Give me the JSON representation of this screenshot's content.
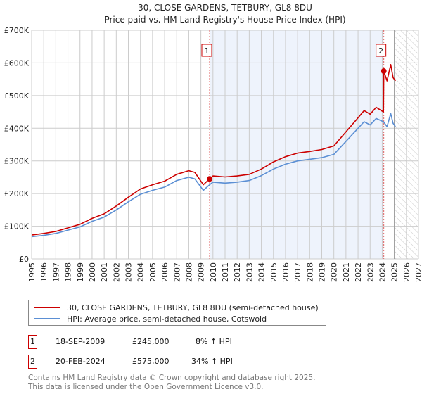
{
  "title_line1": "30, CLOSE GARDENS, TETBURY, GL8 8DU",
  "title_line2": "Price paid vs. HM Land Registry's House Price Index (HPI)",
  "colors": {
    "property": "#cc0000",
    "hpi": "#5b8fd4",
    "shade": "#eef3fc",
    "grid": "#cccccc"
  },
  "chart_data": {
    "type": "line",
    "title": "30, CLOSE GARDENS, TETBURY, GL8 8DU - Price paid vs. HM Land Registry's House Price Index (HPI)",
    "xlim": [
      1995,
      2027
    ],
    "ylim": [
      0,
      700000
    ],
    "x_ticks": [
      "1995",
      "1996",
      "1997",
      "1998",
      "1999",
      "2000",
      "2001",
      "2002",
      "2003",
      "2004",
      "2005",
      "2006",
      "2007",
      "2008",
      "2009",
      "2010",
      "2011",
      "2012",
      "2013",
      "2014",
      "2015",
      "2016",
      "2017",
      "2018",
      "2019",
      "2020",
      "2021",
      "2022",
      "2023",
      "2024",
      "2025",
      "2026",
      "2027"
    ],
    "y_ticks": [
      {
        "v": 0,
        "label": "£0"
      },
      {
        "v": 100000,
        "label": "£100K"
      },
      {
        "v": 200000,
        "label": "£200K"
      },
      {
        "v": 300000,
        "label": "£300K"
      },
      {
        "v": 400000,
        "label": "£400K"
      },
      {
        "v": 500000,
        "label": "£500K"
      },
      {
        "v": 600000,
        "label": "£600K"
      },
      {
        "v": 700000,
        "label": "£700K"
      }
    ],
    "grid": true,
    "series": [
      {
        "name": "30, CLOSE GARDENS, TETBURY, GL8 8DU (semi-detached house)",
        "color": "#cc0000",
        "x": [
          1995,
          1996,
          1997,
          1998,
          1999,
          2000,
          2001,
          2002,
          2003,
          2004,
          2005,
          2006,
          2007,
          2008,
          2008.5,
          2009.2,
          2009.72,
          2010,
          2011,
          2012,
          2013,
          2014,
          2015,
          2016,
          2017,
          2018,
          2019,
          2020,
          2021,
          2022,
          2022.5,
          2023,
          2023.5,
          2024.1,
          2024.13,
          2024.4,
          2024.7,
          2024.9,
          2025.1
        ],
        "y": [
          73000,
          78000,
          84000,
          95000,
          106000,
          124000,
          138000,
          162000,
          189000,
          214000,
          227000,
          238000,
          259000,
          270000,
          265000,
          227000,
          245000,
          254000,
          251000,
          254000,
          259000,
          275000,
          297000,
          313000,
          324000,
          329000,
          335000,
          346000,
          389000,
          432000,
          454000,
          443000,
          464000,
          450000,
          575000,
          545000,
          595000,
          555000,
          545000
        ]
      },
      {
        "name": "HPI: Average price, semi-detached house, Cotswold",
        "color": "#5b8fd4",
        "x": [
          1995,
          1996,
          1997,
          1998,
          1999,
          2000,
          2001,
          2002,
          2003,
          2004,
          2005,
          2006,
          2007,
          2008,
          2008.5,
          2009.2,
          2009.72,
          2010,
          2011,
          2012,
          2013,
          2014,
          2015,
          2016,
          2017,
          2018,
          2019,
          2020,
          2021,
          2022,
          2022.5,
          2023,
          2023.5,
          2024.1,
          2024.4,
          2024.7,
          2024.9,
          2025.1
        ],
        "y": [
          68000,
          72000,
          78000,
          88000,
          98000,
          115000,
          128000,
          150000,
          175000,
          198000,
          210000,
          220000,
          240000,
          250000,
          245000,
          210000,
          227000,
          235000,
          232000,
          235000,
          240000,
          255000,
          275000,
          290000,
          300000,
          305000,
          310000,
          320000,
          360000,
          400000,
          420000,
          410000,
          430000,
          420000,
          405000,
          445000,
          415000,
          405000
        ]
      }
    ],
    "annotations": [
      {
        "label": "1",
        "x": 2009.72,
        "y": 245000
      },
      {
        "label": "2",
        "x": 2024.13,
        "y": 575000
      }
    ],
    "shaded_range": [
      2009.72,
      2024.13
    ],
    "hatched_from": 2025.0
  },
  "legend": {
    "property": "30, CLOSE GARDENS, TETBURY, GL8 8DU (semi-detached house)",
    "hpi": "HPI: Average price, semi-detached house, Cotswold"
  },
  "sales": [
    {
      "num": "1",
      "date": "18-SEP-2009",
      "price": "£245,000",
      "hpi": "8% ↑ HPI"
    },
    {
      "num": "2",
      "date": "20-FEB-2024",
      "price": "£575,000",
      "hpi": "34% ↑ HPI"
    }
  ],
  "footer_line1": "Contains HM Land Registry data © Crown copyright and database right 2025.",
  "footer_line2": "This data is licensed under the Open Government Licence v3.0."
}
